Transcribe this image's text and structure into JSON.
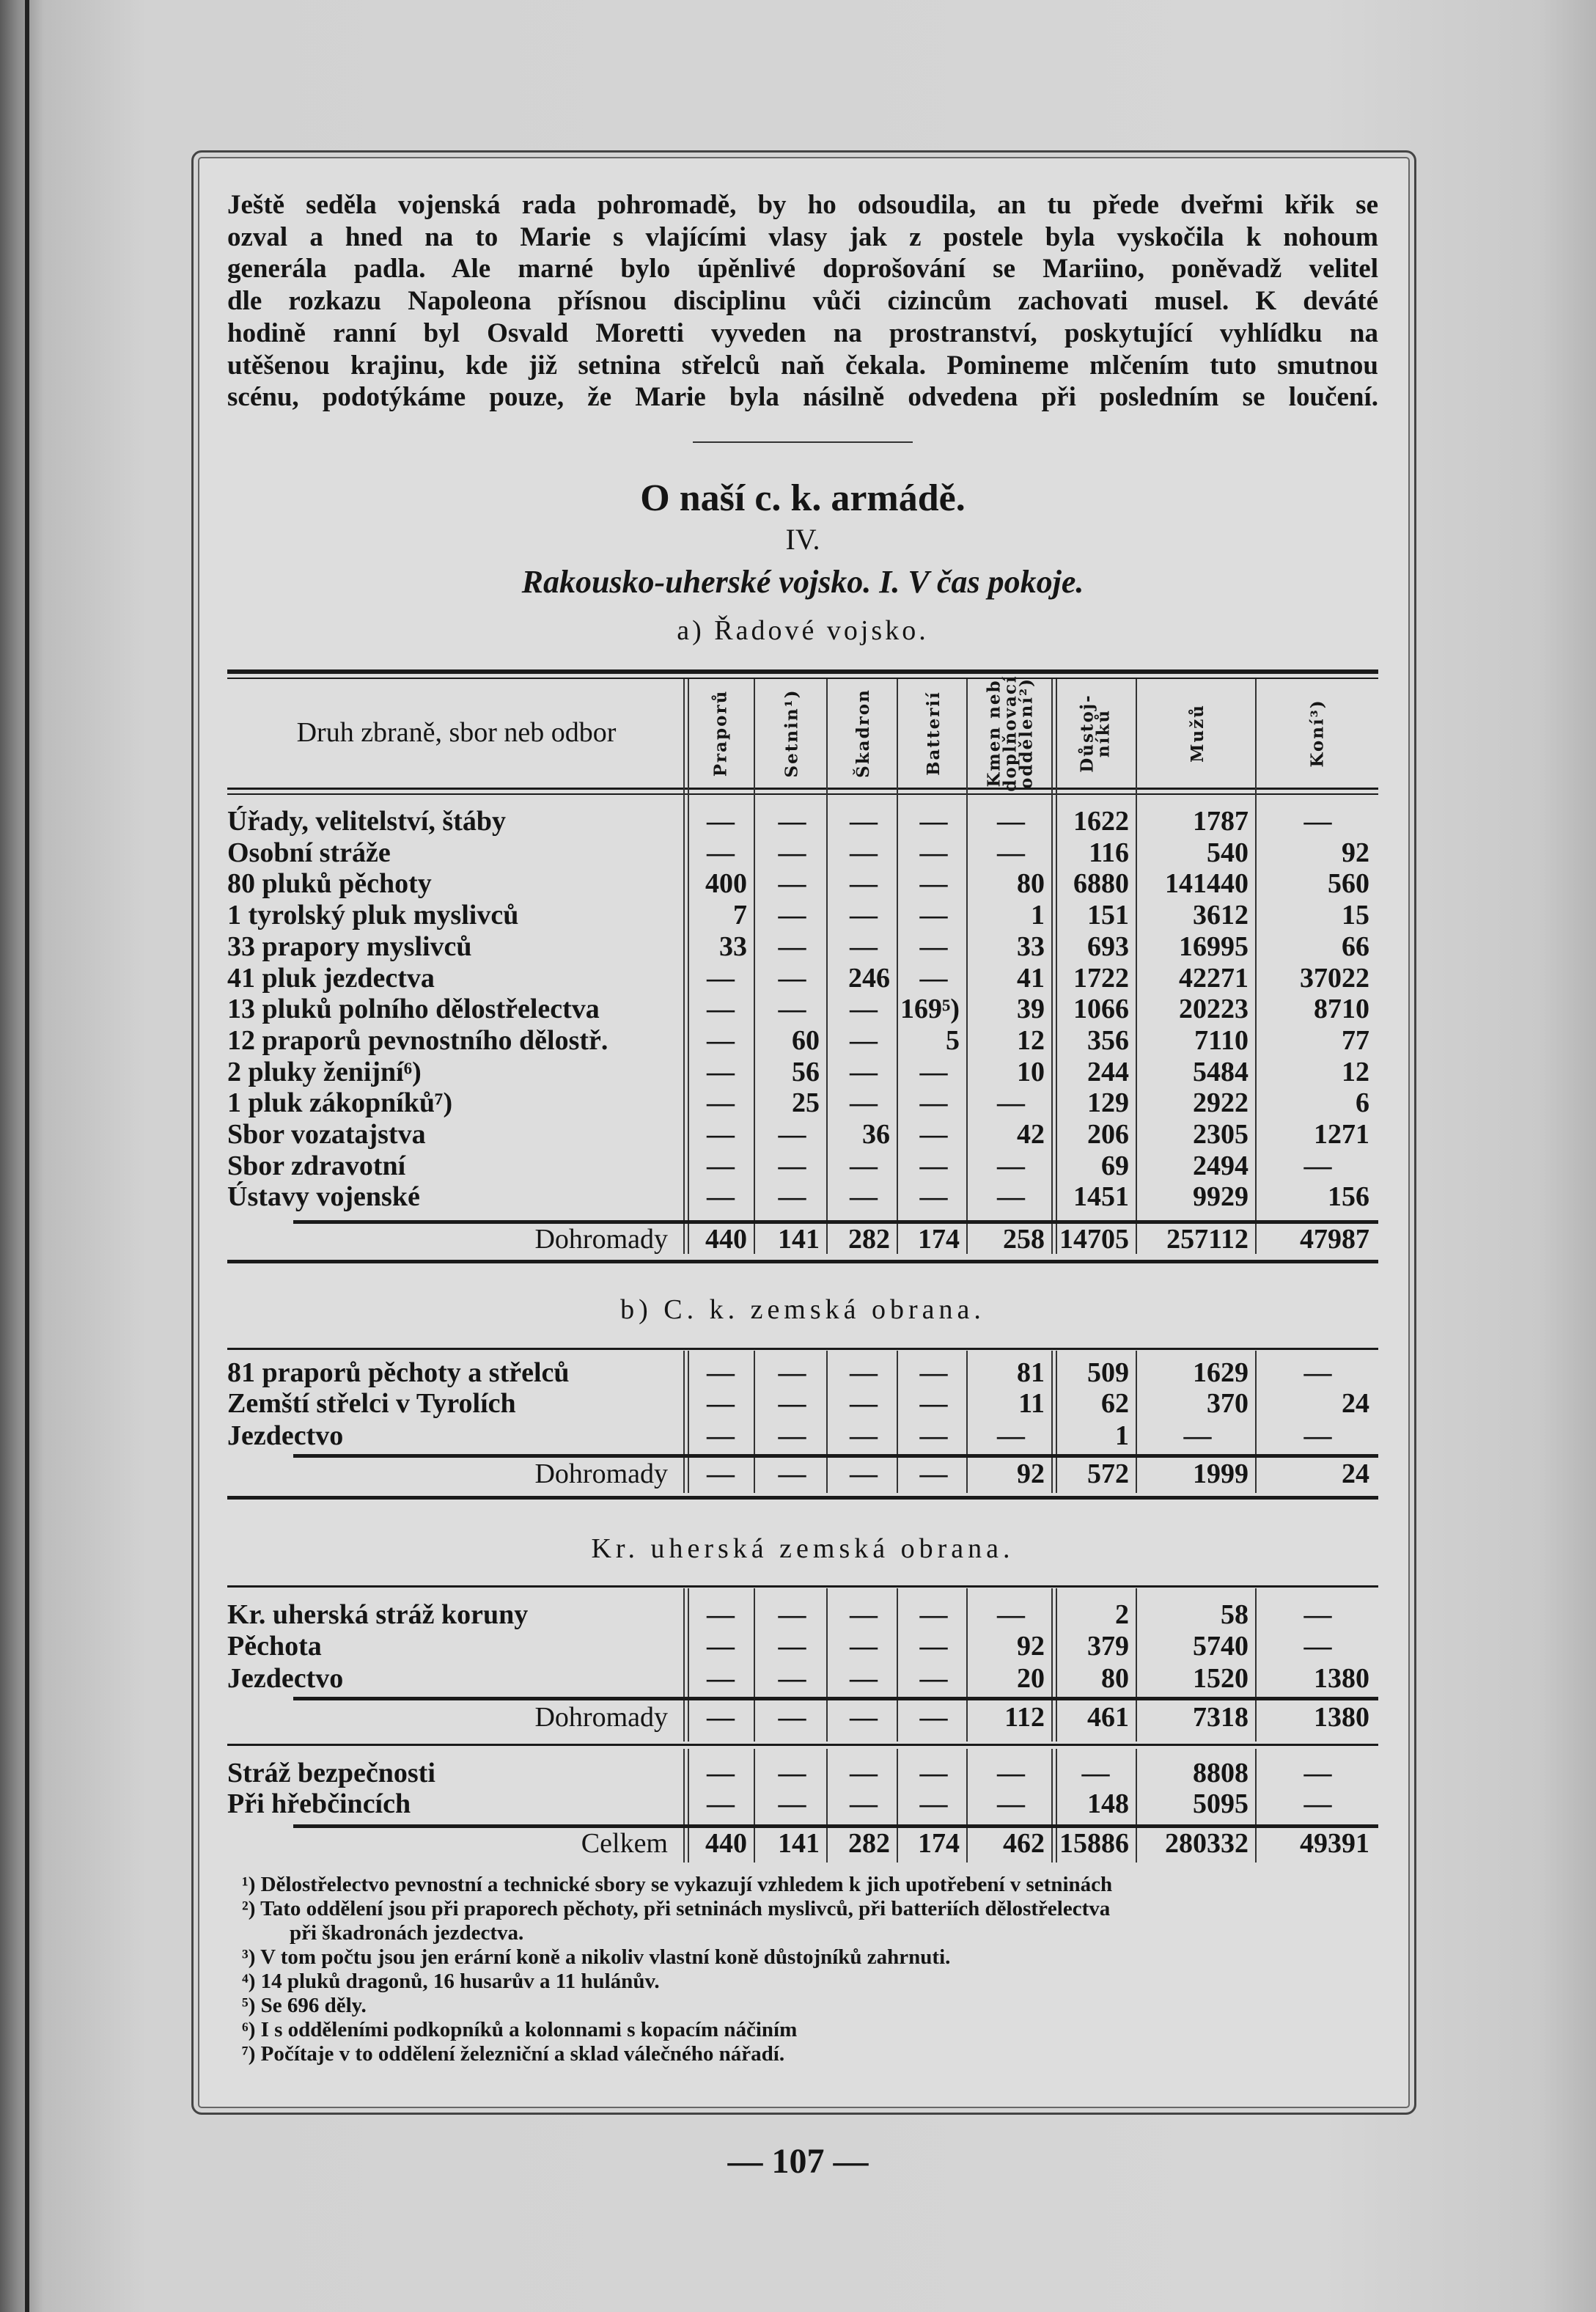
{
  "paragraph": [
    "Ještě seděla vojenská rada pohromadě, by ho odsoudila, an tu přede dveřmi křik se",
    "ozval a hned na to Marie s vlajícími vlasy jak z postele byla vyskočila k nohoum",
    "generála padla. Ale marné bylo úpěnlivé doprošování se Mariino, poněvadž velitel",
    "dle rozkazu Napoleona přísnou disciplinu vůči cizincům zachovati musel. K deváté",
    "hodině ranní byl Osvald Moretti vyveden na prostranství, poskytující vyhlídku na",
    "utěšenou krajinu, kde již setnina střelců naň čekala. Pomineme mlčením tuto smutnou",
    "scénu, podotýkáme pouze, že Marie byla násilně odvedena při posledním se loučení."
  ],
  "title": "O naší c. k. armádě.",
  "roman": "IV.",
  "subtitle": "Rakousko-uherské vojsko. I. V čas pokoje.",
  "section_a_heading": "a) Řadové vojsko.",
  "section_b_heading": "b) C. k. zemská obrana.",
  "section_c_heading": "Kr. uherská zemská obrana.",
  "table_header": {
    "label": "Druh zbraně, sbor neb odbor",
    "columns": [
      "Praporů",
      "Setnin¹)",
      "Škadron",
      "Batterií",
      "Kmen neb\ndoplňovací\noddělení²)",
      "Důstoj-\nníků",
      "Mužů",
      "Koní³)"
    ]
  },
  "section_a": {
    "rows": [
      [
        "Úřady, velitelství, štáby",
        "—",
        "—",
        "—",
        "—",
        "—",
        "1622",
        "1787",
        "—"
      ],
      [
        "Osobní stráže",
        "—",
        "—",
        "—",
        "—",
        "—",
        "116",
        "540",
        "92"
      ],
      [
        "80 pluků pěchoty",
        "400",
        "—",
        "—",
        "—",
        "80",
        "6880",
        "141440",
        "560"
      ],
      [
        "1 tyrolský pluk myslivců",
        "7",
        "—",
        "—",
        "—",
        "1",
        "151",
        "3612",
        "15"
      ],
      [
        "33 prapory myslivců",
        "33",
        "—",
        "—",
        "—",
        "33",
        "693",
        "16995",
        "66"
      ],
      [
        "41 pluk jezdectva",
        "—",
        "—",
        "246",
        "—",
        "41",
        "1722",
        "42271",
        "37022"
      ],
      [
        "13 pluků polního dělostřelectva",
        "—",
        "—",
        "—",
        "169⁵)",
        "39",
        "1066",
        "20223",
        "8710"
      ],
      [
        "12 praporů pevnostního dělostř.",
        "—",
        "60",
        "—",
        "5",
        "12",
        "356",
        "7110",
        "77"
      ],
      [
        "2 pluky ženijní⁶)",
        "—",
        "56",
        "—",
        "—",
        "10",
        "244",
        "5484",
        "12"
      ],
      [
        "1 pluk zákopníků⁷)",
        "—",
        "25",
        "—",
        "—",
        "—",
        "129",
        "2922",
        "6"
      ],
      [
        "Sbor vozatajstva",
        "—",
        "—",
        "36",
        "—",
        "42",
        "206",
        "2305",
        "1271"
      ],
      [
        "Sbor zdravotní",
        "—",
        "—",
        "—",
        "—",
        "—",
        "69",
        "2494",
        "—"
      ],
      [
        "Ústavy vojenské",
        "—",
        "—",
        "—",
        "—",
        "—",
        "1451",
        "9929",
        "156"
      ]
    ],
    "total": [
      "Dohromady",
      "440",
      "141",
      "282",
      "174",
      "258",
      "14705",
      "257112",
      "47987"
    ]
  },
  "section_b": {
    "rows": [
      [
        "81 praporů pěchoty a střelců",
        "—",
        "—",
        "—",
        "—",
        "81",
        "509",
        "1629",
        "—"
      ],
      [
        "Zemští střelci v Tyrolích",
        "—",
        "—",
        "—",
        "—",
        "11",
        "62",
        "370",
        "24"
      ],
      [
        "Jezdectvo",
        "—",
        "—",
        "—",
        "—",
        "—",
        "1",
        "—",
        "—"
      ]
    ],
    "total": [
      "Dohromady",
      "—",
      "—",
      "—",
      "—",
      "92",
      "572",
      "1999",
      "24"
    ]
  },
  "section_c": {
    "rows": [
      [
        "Kr. uherská stráž koruny",
        "—",
        "—",
        "—",
        "—",
        "—",
        "2",
        "58",
        "—"
      ],
      [
        "Pěchota",
        "—",
        "—",
        "—",
        "—",
        "92",
        "379",
        "5740",
        "—"
      ],
      [
        "Jezdectvo",
        "—",
        "—",
        "—",
        "—",
        "20",
        "80",
        "1520",
        "1380"
      ]
    ],
    "total": [
      "Dohromady",
      "—",
      "—",
      "—",
      "—",
      "112",
      "461",
      "7318",
      "1380"
    ]
  },
  "section_d": {
    "rows": [
      [
        "Stráž bezpečnosti",
        "—",
        "—",
        "—",
        "—",
        "—",
        "—",
        "8808",
        "—"
      ],
      [
        "Při hřebčincích",
        "—",
        "—",
        "—",
        "—",
        "—",
        "148",
        "5095",
        "—"
      ]
    ],
    "total": [
      "Celkem",
      "440",
      "141",
      "282",
      "174",
      "462",
      "15886",
      "280332",
      "49391"
    ]
  },
  "footnotes": [
    "¹) Dělostřelectvo pevnostní a technické sbory se vykazují vzhledem k jich upotřebení v setninách",
    "²) Tato oddělení jsou při praporech pěchoty, při setninách myslivců, při batteriích dělostřelectva",
    "při škadronách jezdectva.",
    "³) V tom počtu jsou jen erární koně a nikoliv vlastní koně důstojníků zahrnuti.",
    "⁴) 14 pluků dragonů, 16 husarův a 11 hulánův.",
    "⁵) Se 696 děly.",
    "⁶) I s odděleními podkopníků a kolonnami s kopacím náčiním",
    "⁷) Počítaje v to oddělení železniční a sklad válečného nářadí."
  ],
  "page_number": "— 107 —"
}
